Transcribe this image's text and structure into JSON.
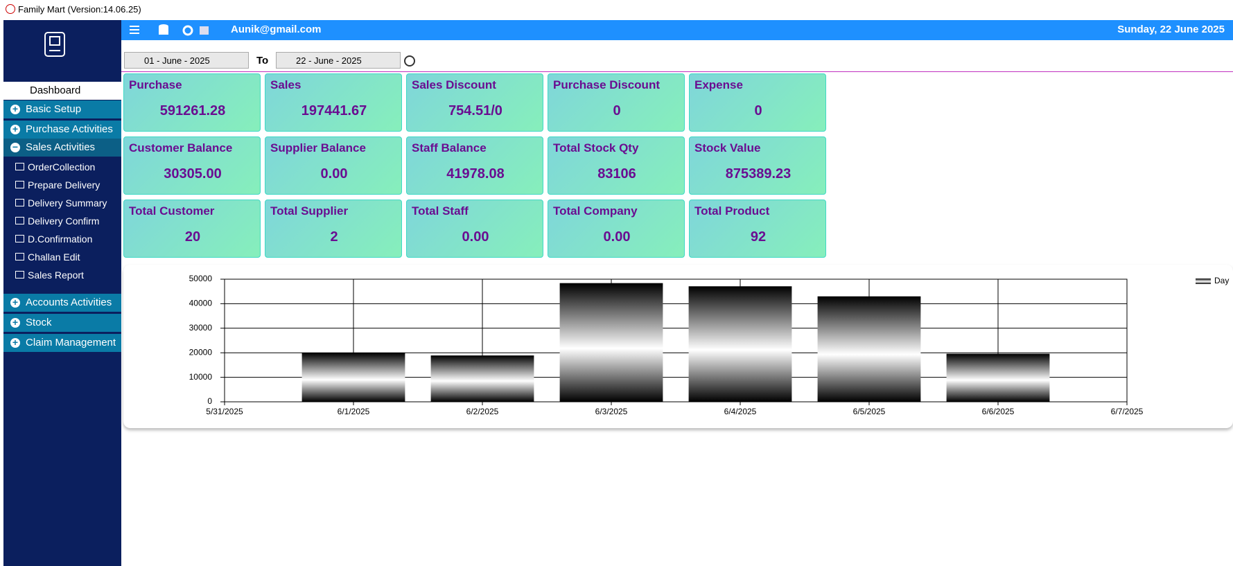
{
  "window_title": "Family Mart (Version:14.06.25)",
  "header": {
    "user": "Aunik@gmail.com",
    "date": "Sunday, 22 June 2025"
  },
  "filters": {
    "from": "01 - June - 2025",
    "to_label": "To",
    "to": "22 - June - 2025"
  },
  "menu_top": [
    "Dashboard",
    "Basic Setup",
    "Purchase Activities",
    "Sales Activities"
  ],
  "submenu": [
    "OrderCollection",
    "Prepare Delivery",
    "Delivery  Summary",
    "Delivery  Confirm",
    "D.Confirmation",
    "Challan Edit",
    "Sales Report"
  ],
  "menu_bottom": [
    "Accounts Activities",
    "Stock",
    "Claim Management"
  ],
  "cards": [
    {
      "label": "Purchase",
      "value": "591261.28"
    },
    {
      "label": "Sales",
      "value": "197441.67"
    },
    {
      "label": "Sales Discount",
      "value": "754.51/0"
    },
    {
      "label": "Purchase Discount",
      "value": "0"
    },
    {
      "label": "Expense",
      "value": "0"
    },
    {
      "label": "Customer Balance",
      "value": "30305.00"
    },
    {
      "label": "Supplier Balance",
      "value": "0.00"
    },
    {
      "label": "Staff Balance",
      "value": "41978.08"
    },
    {
      "label": "Total Stock Qty",
      "value": "83106"
    },
    {
      "label": "Stock Value",
      "value": "875389.23"
    },
    {
      "label": "Total Customer",
      "value": "20"
    },
    {
      "label": "Total Supplier",
      "value": "2"
    },
    {
      "label": "Total Staff",
      "value": "0.00"
    },
    {
      "label": "Total Company",
      "value": "0.00"
    },
    {
      "label": "Total Product",
      "value": "92"
    }
  ],
  "chart_data": {
    "type": "bar",
    "x": [
      "5/31/2025",
      "6/1/2025",
      "6/2/2025",
      "6/3/2025",
      "6/4/2025",
      "6/5/2025",
      "6/6/2025",
      "6/7/2025"
    ],
    "series": [
      {
        "name": "Day",
        "color": "#2e8b57",
        "values": [
          null,
          20000,
          18900,
          48400,
          47100,
          43000,
          19600,
          null
        ]
      }
    ],
    "ylim": [
      0,
      50000
    ],
    "yticks": [
      0,
      10000,
      20000,
      30000,
      40000,
      50000
    ],
    "grid": true,
    "legend": "top-right"
  }
}
